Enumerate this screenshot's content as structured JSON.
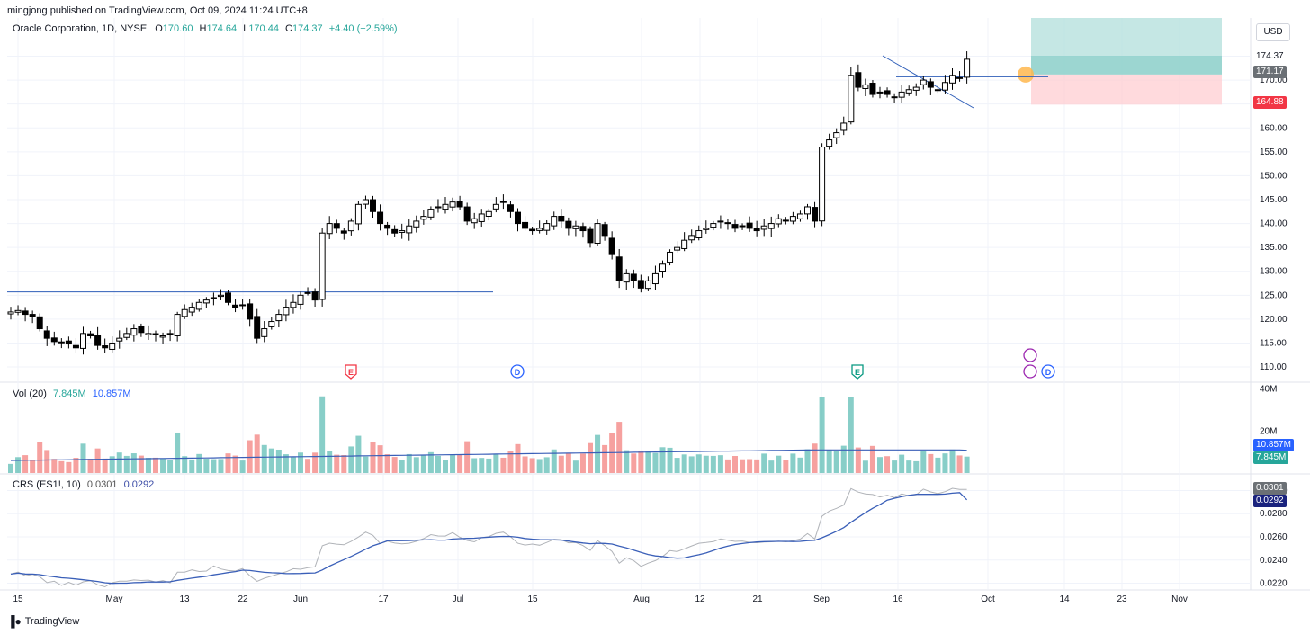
{
  "header": {
    "publisher": "mingjong published on TradingView.com, Oct 09, 2024 11:24 UTC+8",
    "symbol": "Oracle Corporation, 1D, NYSE",
    "open_label": "O",
    "open": "170.60",
    "high_label": "H",
    "high": "174.64",
    "low_label": "L",
    "low": "170.44",
    "close_label": "C",
    "close": "174.37",
    "change": "+4.40 (+2.59%)",
    "currency": "USD"
  },
  "footer": {
    "brand": "TradingView"
  },
  "price_tags": {
    "last": "174.37",
    "entry": "171.17",
    "stop": "164.88"
  },
  "volume": {
    "label": "Vol (20)",
    "value": "7.845M",
    "ma": "10.857M",
    "tag_ma": "10.857M",
    "tag_value": "7.845M"
  },
  "crs": {
    "label": "CRS (ES1!, 10)",
    "value": "0.0301",
    "ma": "0.0292",
    "tag_value": "0.0301",
    "tag_ma": "0.0292"
  },
  "colors": {
    "up": "#26a69a",
    "down": "#ef5350",
    "candle_up_body": "#ffffff",
    "candle_down_body": "#000000",
    "ma_line": "#3a5fb8",
    "trend_line": "#2f5eb8",
    "target_zone": "#b2dfdb",
    "stop_zone": "#ffcdd2"
  },
  "chart_data": [
    {
      "type": "candlestick",
      "title": "Oracle Corporation, 1D, NYSE",
      "x_ticks": [
        "15",
        "May",
        "13",
        "22",
        "Jun",
        "17",
        "Jul",
        "15",
        "Aug",
        "12",
        "21",
        "Sep",
        "16",
        "Oct",
        "14",
        "23",
        "Nov"
      ],
      "y_ticks": [
        110,
        115,
        120,
        125,
        130,
        135,
        140,
        145,
        150,
        155,
        160,
        165,
        170,
        175
      ],
      "y_tick_labels": [
        "110.00",
        "115.00",
        "120.00",
        "125.00",
        "130.00",
        "135.00",
        "140.00",
        "145.00",
        "150.00",
        "155.00",
        "160.00",
        "",
        "170.00",
        ""
      ],
      "ylim": [
        107,
        183
      ],
      "close_series": [
        121.5,
        121.8,
        121.0,
        120.5,
        118.0,
        116.0,
        115.3,
        115.1,
        114.8,
        114.0,
        117.0,
        116.5,
        114.5,
        114.0,
        115.0,
        116.0,
        117.0,
        118.0,
        117.2,
        117.0,
        116.8,
        116.5,
        117.0,
        121.0,
        122.0,
        122.5,
        123.5,
        124.0,
        124.5,
        125.0,
        123.5,
        122.5,
        123.0,
        120.0,
        116.0,
        118.0,
        119.5,
        121.0,
        122.5,
        123.5,
        125.0,
        125.5,
        124.0,
        138.0,
        140.0,
        139.0,
        138.0,
        140.5,
        144.0,
        145.0,
        142.5,
        140.0,
        139.0,
        138.0,
        138.5,
        139.5,
        140.5,
        141.5,
        143.0,
        143.5,
        144.0,
        144.5,
        143.5,
        140.5,
        141.0,
        142.0,
        142.5,
        144.0,
        144.5,
        142.5,
        140.0,
        139.0,
        138.5,
        139.0,
        140.0,
        141.5,
        140.5,
        139.0,
        139.5,
        138.5,
        136.0,
        140.0,
        137.5,
        133.5,
        128.0,
        129.5,
        128.0,
        126.5,
        128.0,
        129.5,
        131.5,
        134.0,
        135.0,
        136.5,
        137.5,
        138.5,
        139.0,
        140.0,
        140.5,
        140.0,
        139.0,
        139.5,
        139.0,
        138.5,
        139.5,
        140.0,
        141.0,
        140.5,
        141.5,
        142.0,
        143.5,
        140.5,
        156.0,
        157.5,
        159.0,
        161.0,
        171.0,
        168.5,
        169.0,
        167.0,
        167.5,
        167.0,
        166.5,
        167.5,
        168.0,
        168.5,
        170.0,
        168.5,
        168.0,
        169.5,
        171.0,
        170.5,
        174.37
      ],
      "horizontal_lines": [
        {
          "name": "resistance-level",
          "value": 125.7
        },
        {
          "name": "breakout-level",
          "value": 170.7
        }
      ],
      "position_box": {
        "target": 183,
        "entry": 171.17,
        "stop": 164.88
      },
      "event_markers": [
        "E",
        "D",
        "E",
        "D"
      ]
    },
    {
      "type": "bar",
      "title": "Vol (20)",
      "y_ticks": [
        "20M",
        "40M"
      ],
      "ylim": [
        0,
        42
      ],
      "unit": "M",
      "last_value": 7.845,
      "ma_value": 10.857
    },
    {
      "type": "line",
      "title": "CRS (ES1!, 10)",
      "y_ticks": [
        0.022,
        0.024,
        0.026,
        0.028,
        0.03
      ],
      "y_tick_labels": [
        "0.0220",
        "0.0240",
        "0.0260",
        "0.0280",
        "0.0300"
      ],
      "ylim": [
        0.0215,
        0.0312
      ],
      "last_value": 0.0301,
      "ma_value": 0.0292
    }
  ]
}
